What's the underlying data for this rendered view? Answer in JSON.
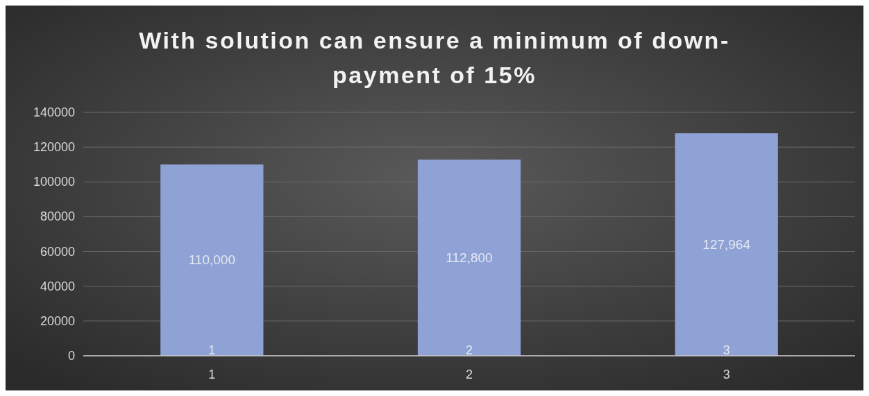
{
  "chart_data": {
    "type": "bar",
    "title": "With solution can ensure a minimum of down-payment of 15%",
    "categories": [
      "1",
      "2",
      "3"
    ],
    "values": [
      110000,
      112800,
      127964
    ],
    "value_labels": [
      "110,000",
      "112,800",
      "127,964"
    ],
    "color": "#8fa2d6",
    "ylim": [
      0,
      140000
    ],
    "yticks": [
      0,
      20000,
      40000,
      60000,
      80000,
      100000,
      120000,
      140000
    ],
    "grid": "y",
    "annotations": [
      {
        "text": "1",
        "x": "1",
        "y": 0
      },
      {
        "text": "2",
        "x": "2",
        "y": 0
      },
      {
        "text": "3",
        "x": "3",
        "y": 0
      }
    ]
  }
}
